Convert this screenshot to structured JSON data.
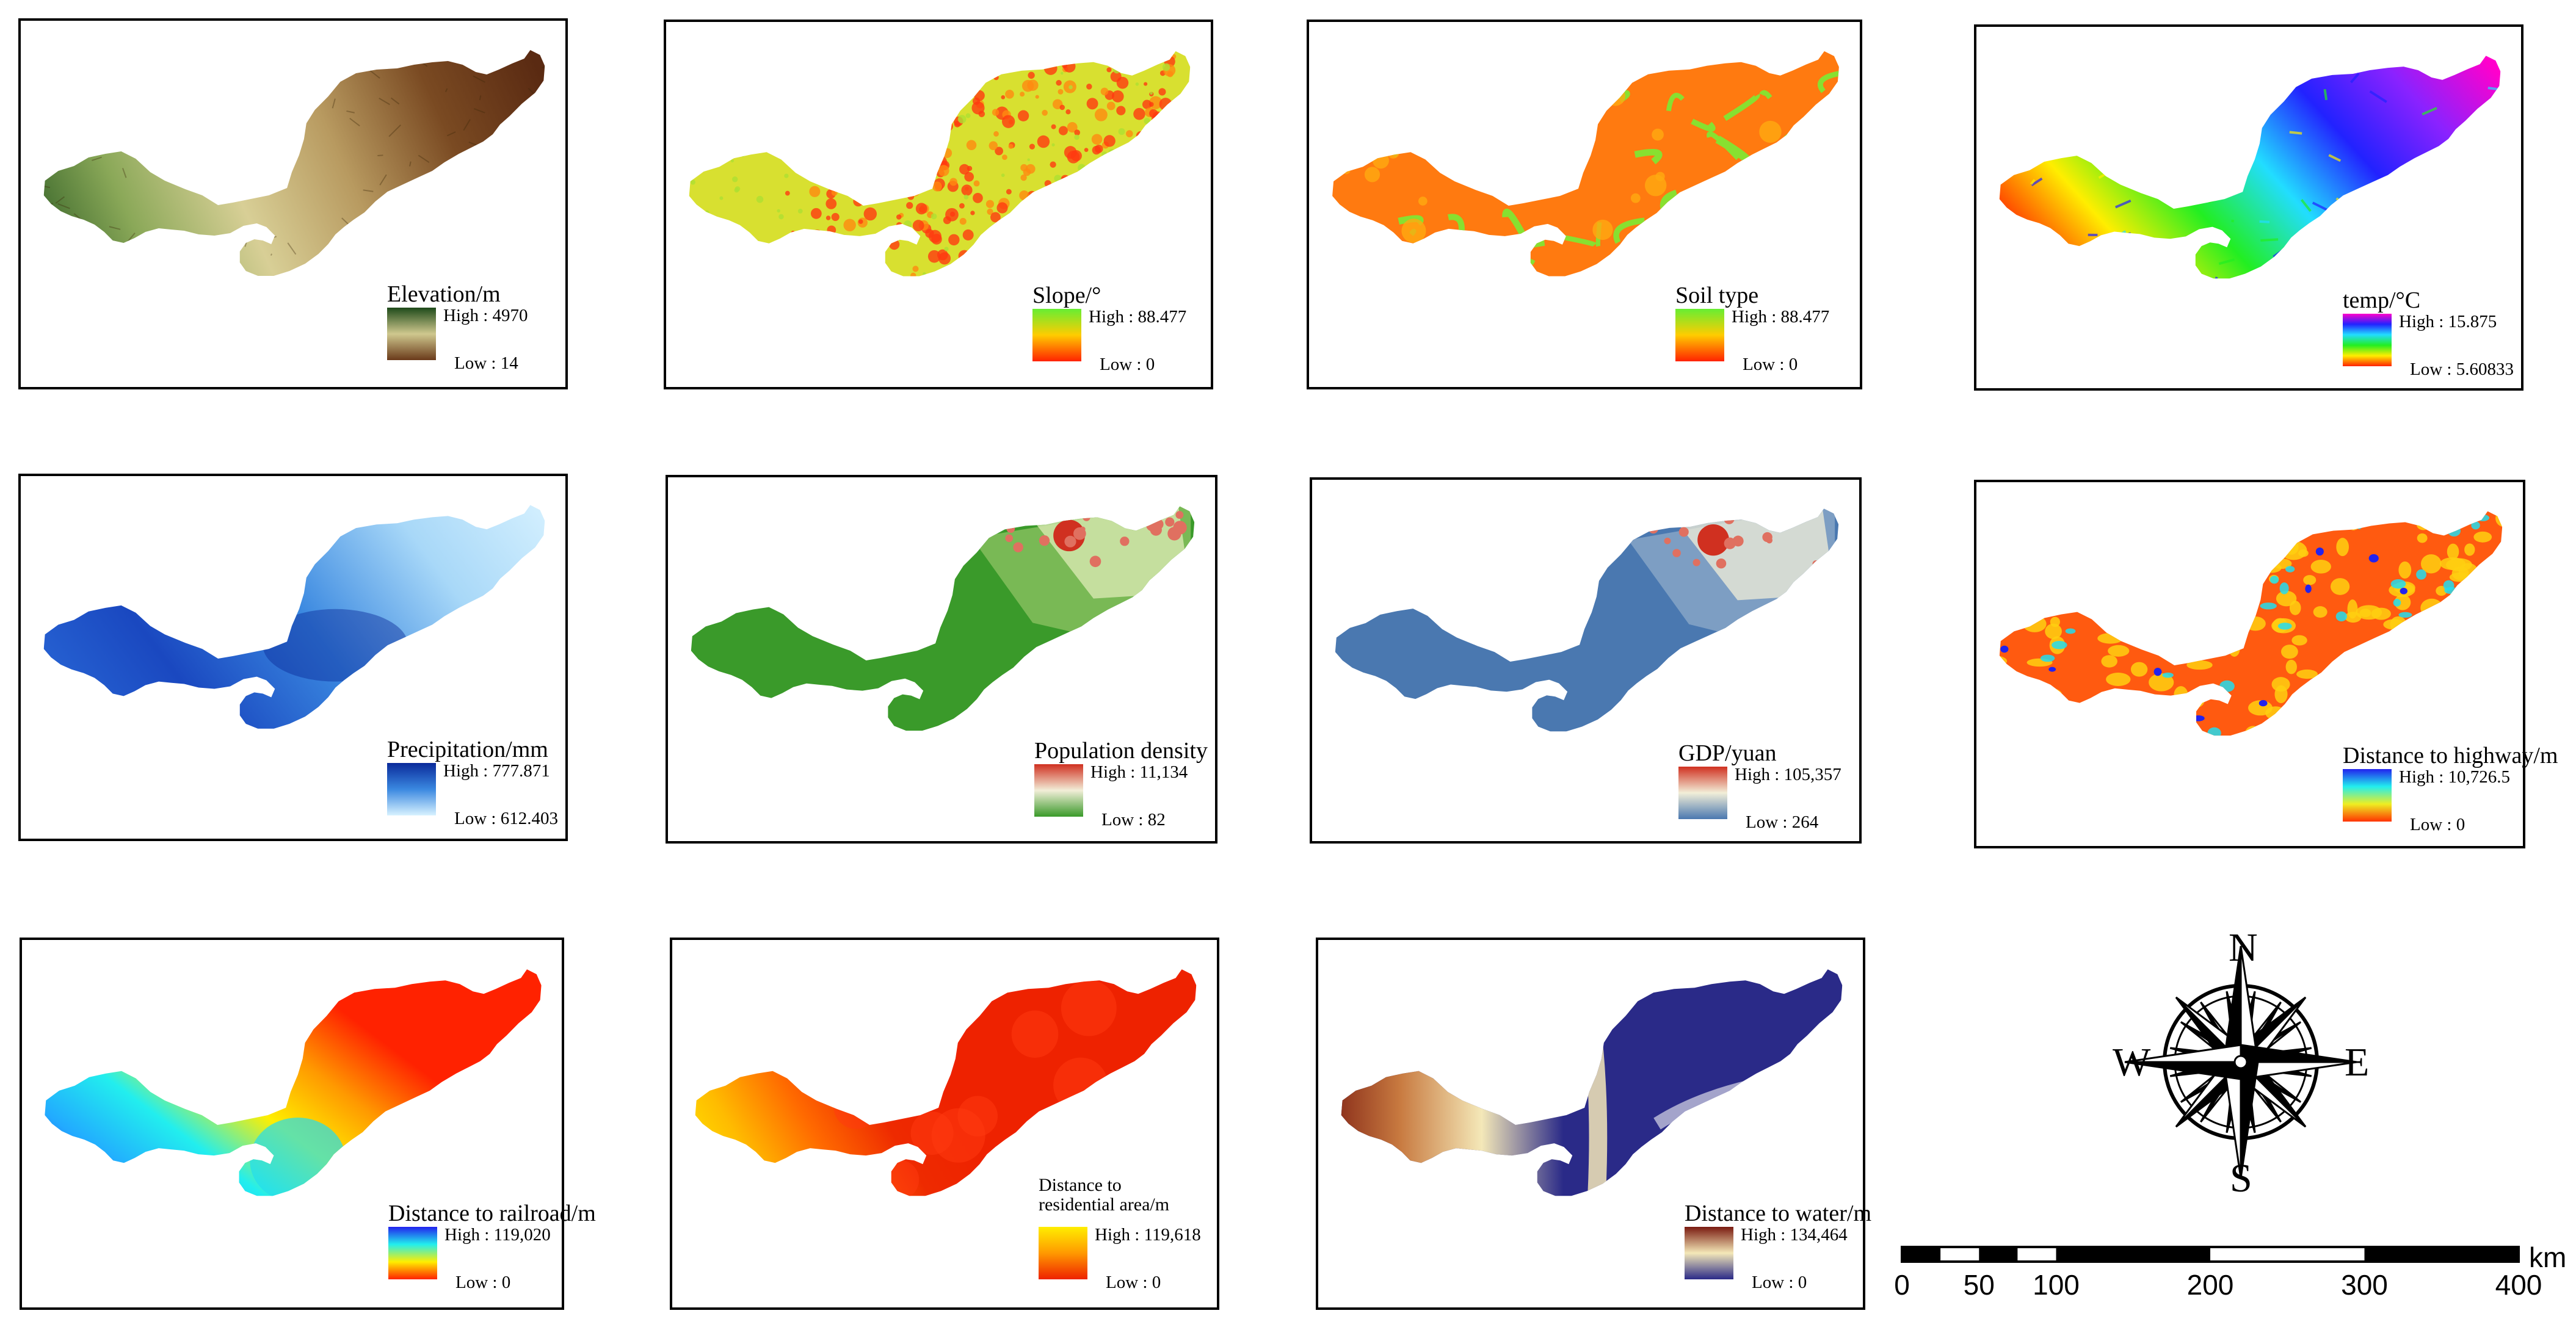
{
  "panels": [
    {
      "id": "elevation",
      "title": "Elevation/m",
      "high": "High : 4970",
      "low": "Low : 14",
      "ramp": [
        "#1e4a1a",
        "#cfc88e",
        "#6a3a1a"
      ],
      "scheme": "elev"
    },
    {
      "id": "slope",
      "title": "Slope/°",
      "high": "High : 88.477",
      "low": "Low : 0",
      "ramp": [
        "#66ee33",
        "#ffcc00",
        "#ff2200"
      ],
      "scheme": "slope"
    },
    {
      "id": "soil",
      "title": "Soil type",
      "high": "High : 88.477",
      "low": "Low : 0",
      "ramp": [
        "#66ee33",
        "#ffcc00",
        "#ff2200"
      ],
      "scheme": "soil"
    },
    {
      "id": "temp",
      "title": "temp/°C",
      "high": "High : 15.875",
      "low": "Low : 5.60833",
      "ramp": [
        "#ff00cc",
        "#2222ff",
        "#22ddff",
        "#22ee22",
        "#ffee00",
        "#ff2200"
      ],
      "scheme": "temp"
    },
    {
      "id": "precip",
      "title": "Precipitation/mm",
      "high": "High : 777.871",
      "low": "Low : 612.403",
      "ramp": [
        "#0a2a9a",
        "#3a88e0",
        "#d8f2ff"
      ],
      "scheme": "precip"
    },
    {
      "id": "popdens",
      "title": "Population density",
      "high": "High : 11,134",
      "low": "Low : 82",
      "ramp": [
        "#d03020",
        "#f2eed8",
        "#3a9a2a"
      ],
      "scheme": "pop"
    },
    {
      "id": "gdp",
      "title": "GDP/yuan",
      "high": "High : 105,357",
      "low": "Low : 264",
      "ramp": [
        "#d03020",
        "#f2eed8",
        "#4a78b0"
      ],
      "scheme": "gdp"
    },
    {
      "id": "highway",
      "title": "Distance to highway/m",
      "high": "High : 10,726.5",
      "low": "Low : 0",
      "ramp": [
        "#2222ee",
        "#22eeee",
        "#eeee22",
        "#ff3300"
      ],
      "scheme": "hwy"
    },
    {
      "id": "railroad",
      "title": "Distance to railroad/m",
      "high": "High : 119,020",
      "low": "Low : 0",
      "ramp": [
        "#2222ee",
        "#22eeee",
        "#ffee00",
        "#ff2200"
      ],
      "scheme": "rail"
    },
    {
      "id": "residential",
      "title": "Distance to\nresidential area/m",
      "high": "High : 119,618",
      "low": "Low : 0",
      "ramp": [
        "#ffee00",
        "#ff9900",
        "#ee2200"
      ],
      "scheme": "res"
    },
    {
      "id": "water",
      "title": "Distance to water/m",
      "high": "High : 134,464",
      "low": "Low : 0",
      "ramp": [
        "#7a1a10",
        "#f4e8b8",
        "#2a2a88"
      ],
      "scheme": "water"
    }
  ],
  "compass": {
    "north": "N",
    "south": "S",
    "east": "E",
    "west": "W"
  },
  "scalebar": {
    "ticks": [
      "0",
      "50",
      "100",
      "200",
      "300",
      "400"
    ],
    "tick_values": [
      0,
      50,
      100,
      200,
      300,
      400
    ],
    "unit": "km"
  }
}
